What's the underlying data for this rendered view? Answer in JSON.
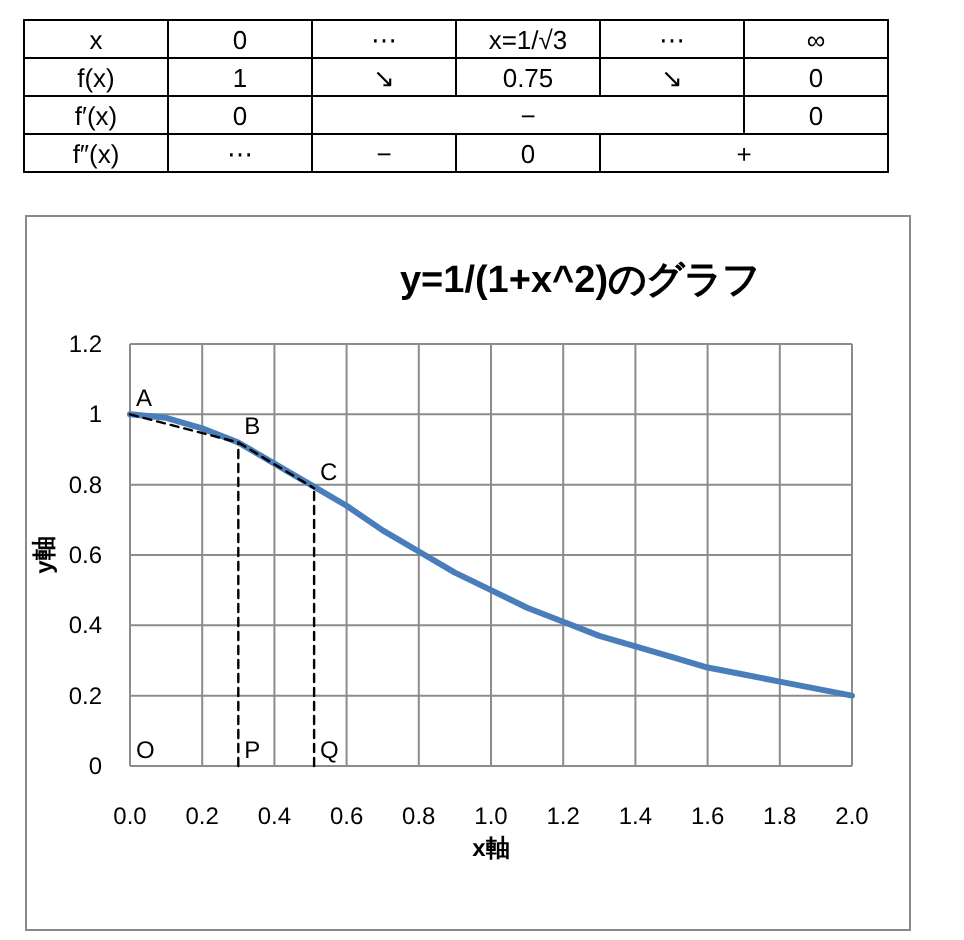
{
  "chart_data": [
    {
      "type": "other",
      "annotations": [
        "x",
        "0",
        "⋯",
        "x=1/√3",
        "⋯",
        "∞",
        "f(x)",
        "1",
        "↘",
        "0.75",
        "↘",
        "0",
        "f′(x)",
        "0",
        "−",
        "0",
        "f″(x)",
        "⋯",
        "−",
        "0",
        "+"
      ]
    },
    {
      "type": "line",
      "title": "y=1/(1+x^2)のグラフ",
      "xlabel": "x軸",
      "ylabel": "y軸",
      "xlim": [
        0,
        2
      ],
      "xticks": [
        {
          "value": 0,
          "label": "0.0"
        },
        {
          "value": 0.2,
          "label": "0.2"
        },
        {
          "value": 0.4,
          "label": "0.4"
        },
        {
          "value": 0.6,
          "label": "0.6"
        },
        {
          "value": 0.8,
          "label": "0.8"
        },
        {
          "value": 1,
          "label": "1.0"
        },
        {
          "value": 1.2,
          "label": "1.2"
        },
        {
          "value": 1.4,
          "label": "1.4"
        },
        {
          "value": 1.6,
          "label": "1.6"
        },
        {
          "value": 1.8,
          "label": "1.8"
        },
        {
          "value": 2,
          "label": "2.0"
        }
      ],
      "ylim": [
        0,
        1.2
      ],
      "yticks": [
        0,
        0.2,
        0.4,
        0.6,
        0.8,
        1,
        1.2
      ],
      "grid": true,
      "series": [
        {
          "color": "#4a7ebb",
          "line_style": "solid",
          "x": [
            0,
            0.1,
            0.2,
            0.3,
            0.4,
            0.5,
            0.6,
            0.7,
            0.8,
            0.9,
            1.0,
            1.1,
            1.2,
            1.3,
            1.4,
            1.5,
            1.6,
            1.7,
            1.8,
            1.9,
            2.0
          ],
          "values": [
            1,
            0.99,
            0.96,
            0.92,
            0.86,
            0.8,
            0.74,
            0.67,
            0.61,
            0.55,
            0.5,
            0.45,
            0.41,
            0.37,
            0.34,
            0.31,
            0.28,
            0.26,
            0.24,
            0.22,
            0.2
          ]
        },
        {
          "color": "#000000",
          "line_style": "dashed",
          "x": [
            0,
            0.3,
            0.51
          ],
          "values": [
            1,
            0.92,
            0.79
          ]
        },
        {
          "color": "#000000",
          "line_style": "dashed",
          "x": [
            0.3,
            0.3
          ],
          "values": [
            0,
            0.92
          ]
        },
        {
          "color": "#000000",
          "line_style": "dashed",
          "x": [
            0.51,
            0.51
          ],
          "values": [
            0,
            0.79
          ]
        }
      ],
      "annotations": [
        {
          "text": "A",
          "x": 0,
          "y": 1
        },
        {
          "text": "B",
          "x": 0.3,
          "y": 0.92
        },
        {
          "text": "C",
          "x": 0.51,
          "y": 0.79
        },
        "O",
        {
          "text": "P",
          "x": 0.3,
          "y": 0
        },
        {
          "text": "Q",
          "x": 0.51,
          "y": 0
        }
      ]
    }
  ]
}
